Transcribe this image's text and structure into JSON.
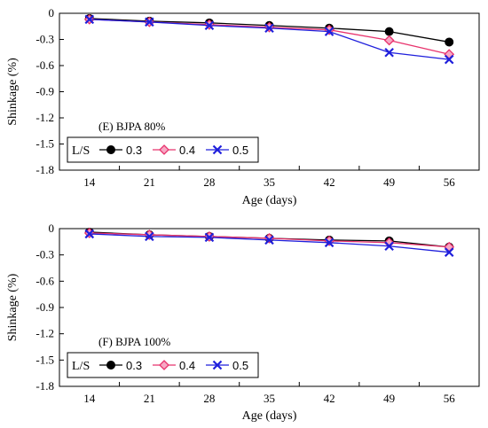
{
  "chart_data": [
    {
      "type": "line",
      "annotation": "(E) BJPA 80%",
      "xlabel": "Age (days)",
      "ylabel": "Shinkage (%)",
      "categories": [
        "14",
        "21",
        "28",
        "35",
        "42",
        "49",
        "56"
      ],
      "ylim": [
        -1.8,
        0
      ],
      "yticks": [
        "0",
        "-0.3",
        "-0.6",
        "-0.9",
        "-1.2",
        "-1.5",
        "-1.8"
      ],
      "legend_title": "L/S",
      "legend_position": "bottom-left",
      "series": [
        {
          "name": "0.3",
          "color": "#000000",
          "marker": "circle",
          "values": [
            -0.06,
            -0.09,
            -0.11,
            -0.14,
            -0.17,
            -0.21,
            -0.33
          ]
        },
        {
          "name": "0.4",
          "color": "#e8336d",
          "marker": "diamond",
          "values": [
            -0.07,
            -0.1,
            -0.13,
            -0.16,
            -0.19,
            -0.31,
            -0.47
          ]
        },
        {
          "name": "0.5",
          "color": "#1f1fdc",
          "marker": "x",
          "values": [
            -0.07,
            -0.1,
            -0.14,
            -0.17,
            -0.21,
            -0.45,
            -0.53
          ]
        }
      ]
    },
    {
      "type": "line",
      "annotation": "(F) BJPA 100%",
      "xlabel": "Age (days)",
      "ylabel": "Shinkage (%)",
      "categories": [
        "14",
        "21",
        "28",
        "35",
        "42",
        "49",
        "56"
      ],
      "ylim": [
        -1.8,
        0
      ],
      "yticks": [
        "0",
        "-0.3",
        "-0.6",
        "-0.9",
        "-1.2",
        "-1.5",
        "-1.8"
      ],
      "legend_title": "L/S",
      "legend_position": "bottom-left",
      "series": [
        {
          "name": "0.3",
          "color": "#000000",
          "marker": "circle",
          "values": [
            -0.04,
            -0.07,
            -0.09,
            -0.11,
            -0.13,
            -0.14,
            -0.21
          ]
        },
        {
          "name": "0.4",
          "color": "#e8336d",
          "marker": "diamond",
          "values": [
            -0.05,
            -0.07,
            -0.09,
            -0.11,
            -0.14,
            -0.16,
            -0.21
          ]
        },
        {
          "name": "0.5",
          "color": "#1f1fdc",
          "marker": "x",
          "values": [
            -0.06,
            -0.09,
            -0.1,
            -0.13,
            -0.16,
            -0.2,
            -0.27
          ]
        }
      ]
    }
  ]
}
